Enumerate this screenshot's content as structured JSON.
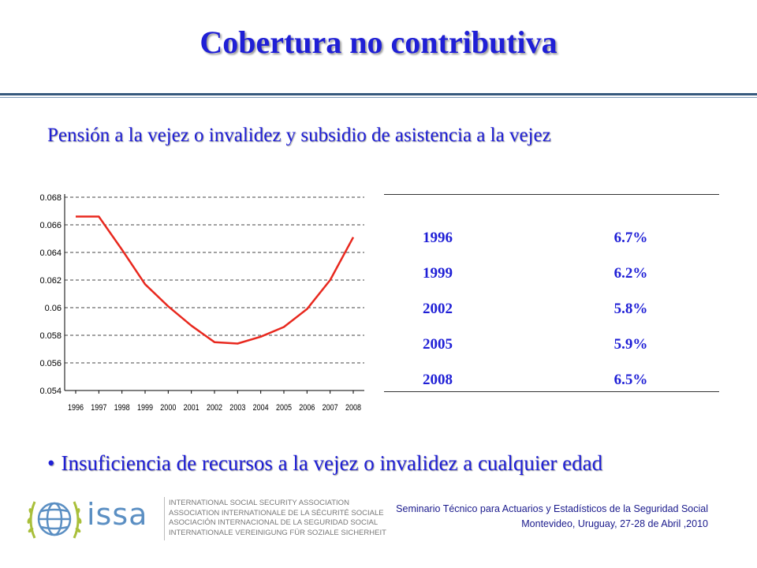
{
  "title": "Cobertura no contributiva",
  "subtitle": "Pensión a la vejez o invalidez y subsidio de asistencia a la vejez",
  "chart_data": {
    "type": "line",
    "x": [
      "1996",
      "1997",
      "1998",
      "1999",
      "2000",
      "2001",
      "2002",
      "2003",
      "2004",
      "2005",
      "2006",
      "2007",
      "2008"
    ],
    "series": [
      {
        "color": "#e8281e",
        "values": [
          0.0666,
          0.0666,
          0.0642,
          0.0617,
          0.0601,
          0.0587,
          0.0575,
          0.0574,
          0.0579,
          0.0586,
          0.0599,
          0.062,
          0.0651
        ]
      }
    ],
    "yticks": [
      "0.054",
      "0.056",
      "0.058",
      "0.06",
      "0.062",
      "0.064",
      "0.066",
      "0.068"
    ],
    "ylim": [
      0.054,
      0.068
    ],
    "grid": "horizontal dashed"
  },
  "table": {
    "rows": [
      {
        "year": "1996",
        "value": "6.7%"
      },
      {
        "year": "1999",
        "value": "6.2%"
      },
      {
        "year": "2002",
        "value": "5.8%"
      },
      {
        "year": "2005",
        "value": "5.9%"
      },
      {
        "year": "2008",
        "value": "6.5%"
      }
    ]
  },
  "bullet": {
    "symbol": "•",
    "text": "Insuficiencia de recursos a la vejez o invalidez a cualquier edad"
  },
  "logo": {
    "word": "issa",
    "lines": [
      "INTERNATIONAL SOCIAL SECURITY ASSOCIATION",
      "ASSOCIATION INTERNATIONALE DE LA SÉCURITÉ SOCIALE",
      "ASOCIACIÓN INTERNACIONAL DE LA SEGURIDAD SOCIAL",
      "INTERNATIONALE VEREINIGUNG FÜR SOZIALE SICHERHEIT"
    ]
  },
  "footer": {
    "line1": "Seminario Técnico para Actuarios y Estadísticos de la Seguridad Social",
    "line2": "Montevideo, Uruguay, 27-28 de Abril ,2010"
  },
  "colors": {
    "title": "#1f1fd6",
    "line": "#e8281e",
    "logo": "#5b8fc3"
  }
}
